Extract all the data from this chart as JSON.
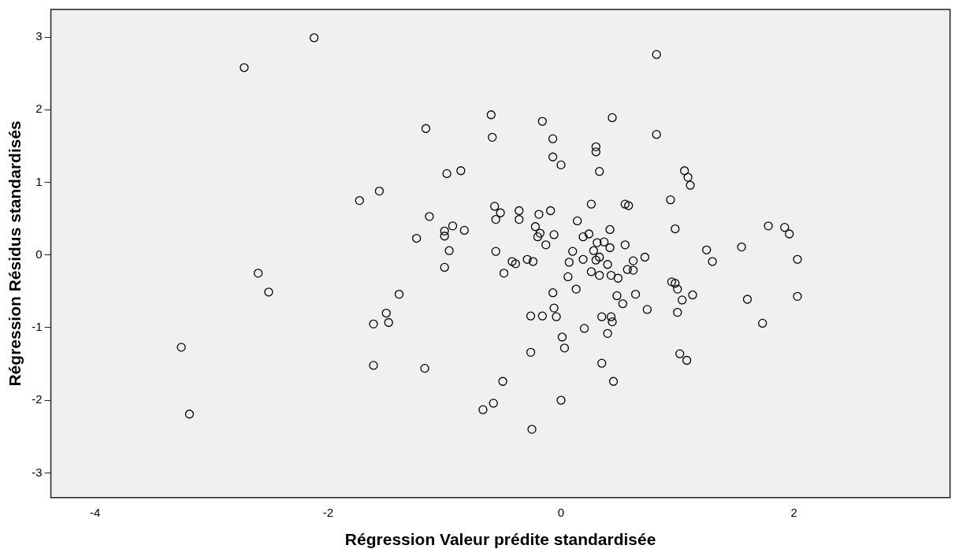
{
  "chart_data": {
    "type": "scatter",
    "xlabel": "Régression Valeur prédite standardisée",
    "ylabel": "Régression Résidus standardisés",
    "xlim": [
      -4.38,
      3.34
    ],
    "ylim": [
      -3.34,
      3.38
    ],
    "xticks": [
      -4,
      -2,
      0,
      2
    ],
    "yticks": [
      -3,
      -2,
      -1,
      0,
      1,
      2,
      3
    ],
    "grid": false,
    "marker": "circle",
    "legend": false,
    "series": [
      {
        "color": "#000000",
        "x": [
          -2.12,
          -2.72,
          0.82,
          -0.6,
          -0.16,
          0.44,
          -1.16,
          -0.59,
          -0.07,
          0.82,
          0.3,
          0.3,
          -0.07,
          0.0,
          -0.86,
          -0.98,
          0.33,
          1.06,
          1.09,
          1.11,
          -1.73,
          -1.56,
          0.94,
          0.55,
          0.58,
          0.26,
          -0.57,
          -0.52,
          -0.36,
          -0.09,
          -1.13,
          -0.19,
          -0.56,
          -0.36,
          0.14,
          -0.93,
          -0.22,
          -0.83,
          -1.0,
          -1.0,
          -0.18,
          -0.06,
          -0.2,
          -1.24,
          0.24,
          0.19,
          0.42,
          0.98,
          1.78,
          1.92,
          1.96,
          -0.56,
          -0.42,
          -0.39,
          -0.29,
          -0.24,
          -0.49,
          -0.13,
          0.1,
          0.07,
          0.19,
          0.28,
          0.31,
          0.37,
          0.42,
          0.55,
          0.3,
          0.33,
          0.4,
          0.06,
          0.26,
          0.33,
          0.43,
          0.49,
          0.57,
          0.62,
          0.62,
          0.72,
          -0.07,
          0.13,
          0.48,
          0.53,
          0.64,
          0.74,
          0.95,
          0.98,
          1.0,
          1.13,
          1.04,
          1.0,
          1.25,
          1.3,
          1.55,
          1.6,
          1.73,
          2.03,
          2.03,
          -0.06,
          -0.26,
          -0.16,
          -0.04,
          0.35,
          0.43,
          0.44,
          0.2,
          0.4,
          0.01,
          0.03,
          -0.26,
          1.02,
          1.08,
          0.35,
          -0.5,
          0.45,
          -0.58,
          0.0,
          -0.25,
          -3.26,
          -3.19,
          -2.6,
          -2.51,
          -1.61,
          -1.5,
          -1.48,
          -1.39,
          -1.61,
          -1.17,
          -1.0,
          -0.96,
          -0.67
        ],
        "values": [
          2.99,
          2.58,
          2.76,
          1.93,
          1.84,
          1.89,
          1.74,
          1.62,
          1.6,
          1.66,
          1.49,
          1.42,
          1.35,
          1.24,
          1.16,
          1.12,
          1.15,
          1.16,
          1.07,
          0.96,
          0.75,
          0.88,
          0.76,
          0.7,
          0.68,
          0.7,
          0.67,
          0.58,
          0.61,
          0.61,
          0.53,
          0.56,
          0.49,
          0.49,
          0.47,
          0.4,
          0.39,
          0.34,
          0.33,
          0.26,
          0.3,
          0.28,
          0.25,
          0.23,
          0.29,
          0.25,
          0.35,
          0.36,
          0.4,
          0.38,
          0.29,
          0.05,
          -0.09,
          -0.12,
          -0.06,
          -0.09,
          -0.25,
          0.14,
          0.05,
          -0.1,
          -0.06,
          0.06,
          0.17,
          0.18,
          0.1,
          0.14,
          -0.07,
          -0.03,
          -0.13,
          -0.3,
          -0.23,
          -0.28,
          -0.28,
          -0.32,
          -0.2,
          -0.21,
          -0.08,
          -0.03,
          -0.52,
          -0.47,
          -0.56,
          -0.67,
          -0.54,
          -0.75,
          -0.37,
          -0.39,
          -0.47,
          -0.55,
          -0.62,
          -0.79,
          0.07,
          -0.09,
          0.11,
          -0.61,
          -0.94,
          -0.06,
          -0.57,
          -0.73,
          -0.84,
          -0.84,
          -0.85,
          -0.85,
          -0.85,
          -0.92,
          -1.01,
          -1.08,
          -1.13,
          -1.28,
          -1.34,
          -1.36,
          -1.45,
          -1.49,
          -1.74,
          -1.74,
          -2.04,
          -2.0,
          -2.4,
          -1.27,
          -2.19,
          -0.25,
          -0.51,
          -0.95,
          -0.8,
          -0.93,
          -0.54,
          -1.52,
          -1.56,
          -0.17,
          0.06,
          -2.13
        ]
      }
    ]
  }
}
